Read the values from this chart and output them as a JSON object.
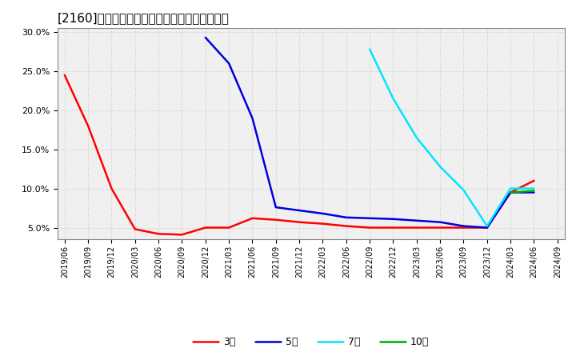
{
  "title": "[2160]　当期純利益マージンの標準偏差の推移",
  "ylim": [
    0.035,
    0.305
  ],
  "yticks": [
    0.05,
    0.1,
    0.15,
    0.2,
    0.25,
    0.3
  ],
  "background_color": "#ffffff",
  "plot_bg_color": "#f0f0f0",
  "grid_color": "#cccccc",
  "all_xticks": [
    "2019/06",
    "2019/09",
    "2019/12",
    "2020/03",
    "2020/06",
    "2020/09",
    "2020/12",
    "2021/03",
    "2021/06",
    "2021/09",
    "2021/12",
    "2022/03",
    "2022/06",
    "2022/09",
    "2022/12",
    "2023/03",
    "2023/06",
    "2023/09",
    "2023/12",
    "2024/03",
    "2024/06",
    "2024/09"
  ],
  "series": {
    "3year": {
      "color": "#ff0000",
      "label": "3年",
      "x": [
        "2019/06",
        "2019/09",
        "2019/12",
        "2020/03",
        "2020/06",
        "2020/09",
        "2020/12",
        "2021/03",
        "2021/06",
        "2021/09",
        "2021/12",
        "2022/03",
        "2022/06",
        "2022/09",
        "2022/12",
        "2023/03",
        "2023/06",
        "2023/09",
        "2023/12",
        "2024/03",
        "2024/06"
      ],
      "y": [
        0.245,
        0.18,
        0.1,
        0.048,
        0.042,
        0.041,
        0.05,
        0.05,
        0.062,
        0.06,
        0.057,
        0.055,
        0.052,
        0.05,
        0.05,
        0.05,
        0.05,
        0.05,
        0.05,
        0.095,
        0.11
      ]
    },
    "5year": {
      "color": "#0000dd",
      "label": "5年",
      "x": [
        "2020/12",
        "2021/03",
        "2021/06",
        "2021/09",
        "2021/12",
        "2022/03",
        "2022/06",
        "2022/09",
        "2022/12",
        "2023/03",
        "2023/06",
        "2023/09",
        "2023/12",
        "2024/03",
        "2024/06"
      ],
      "y": [
        0.293,
        0.26,
        0.19,
        0.076,
        0.072,
        0.068,
        0.063,
        0.062,
        0.061,
        0.059,
        0.057,
        0.052,
        0.05,
        0.095,
        0.095
      ]
    },
    "7year": {
      "color": "#00e5ff",
      "label": "7年",
      "x": [
        "2022/09",
        "2022/12",
        "2023/03",
        "2023/06",
        "2023/09",
        "2023/12",
        "2024/03",
        "2024/06"
      ],
      "y": [
        0.278,
        0.215,
        0.165,
        0.128,
        0.098,
        0.052,
        0.1,
        0.1
      ]
    },
    "10year": {
      "color": "#00aa00",
      "label": "10年",
      "x": [
        "2024/03",
        "2024/06"
      ],
      "y": [
        0.095,
        0.097
      ]
    }
  }
}
